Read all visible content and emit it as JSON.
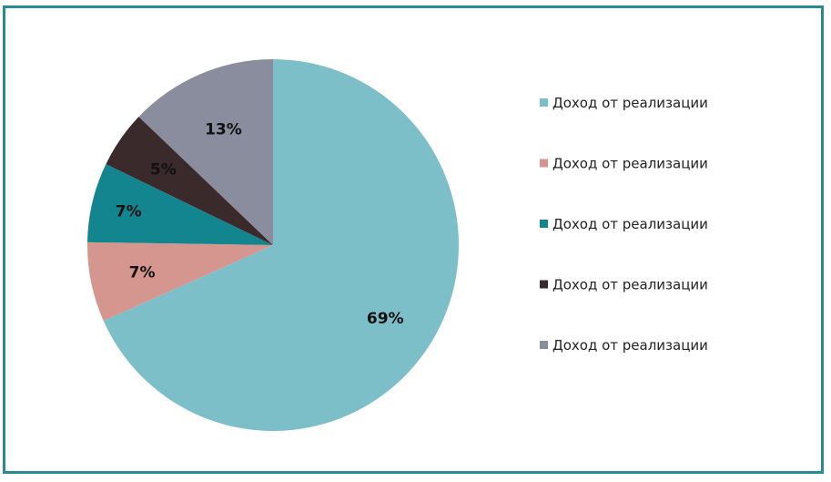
{
  "chart_data": {
    "type": "pie",
    "title": "",
    "start_angle_deg": 0,
    "direction": "clockwise",
    "legend_position": "right",
    "categories": [
      "Доход от реализации",
      "Доход от реализации",
      "Доход от реализации",
      "Доход от реализации",
      "Доход от реализации"
    ],
    "values": [
      69,
      7,
      7,
      5,
      13
    ],
    "data_labels": [
      "69%",
      "7%",
      "7%",
      "5%",
      "13%"
    ],
    "colors": [
      "#7dbfc8",
      "#d59690",
      "#13858f",
      "#3a2a2c",
      "#8a8d9d"
    ]
  }
}
